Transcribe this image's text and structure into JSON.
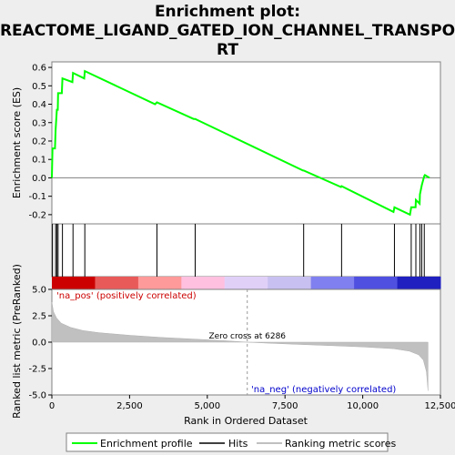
{
  "chart_data": {
    "type": "line",
    "title_lines": [
      "Enrichment plot:",
      "REACTOME_LIGAND_GATED_ION_CHANNEL_TRANSPO",
      "RT"
    ],
    "xlabel": "Rank in Ordered Dataset",
    "xlim": [
      0,
      12500
    ],
    "x_ticks": [
      0,
      2500,
      5000,
      7500,
      10000,
      12500
    ],
    "x_tick_labels": [
      "0",
      "2,500",
      "5,000",
      "7,500",
      "10,000",
      "12,500"
    ],
    "top_panel": {
      "ylabel": "Enrichment score (ES)",
      "ylim": [
        -0.25,
        0.63
      ],
      "y_ticks": [
        -0.2,
        -0.1,
        0.0,
        0.1,
        0.2,
        0.3,
        0.4,
        0.5,
        0.6
      ],
      "y_tick_labels": [
        "-0.2",
        "-0.1",
        "0.0",
        "0.1",
        "0.2",
        "0.3",
        "0.4",
        "0.5",
        "0.6"
      ],
      "series": [
        {
          "name": "Enrichment profile",
          "color": "#00ff00",
          "points": [
            [
              0,
              0.0
            ],
            [
              20,
              0.16
            ],
            [
              100,
              0.16
            ],
            [
              120,
              0.26
            ],
            [
              160,
              0.37
            ],
            [
              190,
              0.37
            ],
            [
              200,
              0.46
            ],
            [
              320,
              0.46
            ],
            [
              340,
              0.54
            ],
            [
              660,
              0.52
            ],
            [
              680,
              0.57
            ],
            [
              1040,
              0.54
            ],
            [
              1060,
              0.58
            ],
            [
              3320,
              0.4
            ],
            [
              3380,
              0.41
            ],
            [
              4560,
              0.32
            ],
            [
              4610,
              0.32
            ],
            [
              8080,
              0.04
            ],
            [
              8100,
              0.04
            ],
            [
              9300,
              -0.05
            ],
            [
              9320,
              -0.045
            ],
            [
              10990,
              -0.185
            ],
            [
              11020,
              -0.16
            ],
            [
              11520,
              -0.2
            ],
            [
              11560,
              -0.16
            ],
            [
              11700,
              -0.16
            ],
            [
              11710,
              -0.12
            ],
            [
              11830,
              -0.14
            ],
            [
              11840,
              -0.09
            ],
            [
              11900,
              -0.04
            ],
            [
              11980,
              0.01
            ],
            [
              12000,
              0.015
            ],
            [
              12150,
              0.0
            ]
          ]
        }
      ]
    },
    "hits": [
      20,
      120,
      160,
      200,
      340,
      680,
      1060,
      3380,
      4610,
      8100,
      9320,
      11020,
      11560,
      11710,
      11840,
      11900,
      11980
    ],
    "bottom_panel": {
      "ylabel": "Ranked list metric (PreRanked)",
      "ylim": [
        -5,
        5
      ],
      "y_ticks": [
        -5.0,
        -2.5,
        0.0,
        2.5,
        5.0
      ],
      "y_tick_labels": [
        "-5.0",
        "-2.5",
        "0.0",
        "2.5",
        "5.0"
      ],
      "series": [
        {
          "name": "Ranking metric scores",
          "color": "#c0c0c0",
          "points": [
            [
              0,
              3.8
            ],
            [
              50,
              2.9
            ],
            [
              150,
              2.3
            ],
            [
              300,
              1.8
            ],
            [
              600,
              1.4
            ],
            [
              1000,
              1.1
            ],
            [
              1500,
              0.9
            ],
            [
              2500,
              0.65
            ],
            [
              3500,
              0.45
            ],
            [
              4500,
              0.3
            ],
            [
              5500,
              0.15
            ],
            [
              6286,
              0.0
            ],
            [
              7000,
              -0.1
            ],
            [
              8000,
              -0.22
            ],
            [
              9000,
              -0.33
            ],
            [
              10000,
              -0.45
            ],
            [
              11000,
              -0.62
            ],
            [
              11500,
              -0.85
            ],
            [
              11800,
              -1.2
            ],
            [
              11950,
              -1.7
            ],
            [
              12050,
              -2.8
            ],
            [
              12100,
              -4.6
            ]
          ]
        }
      ]
    },
    "annotations": {
      "pos": "'na_pos' (positively correlated)",
      "neg": "'na_neg' (negatively correlated)",
      "zero_cross": "Zero cross at 6286",
      "zero_cross_value": 6286
    },
    "legend": {
      "placement": "bottom",
      "items": [
        {
          "label": "Enrichment profile",
          "color": "#00ff00"
        },
        {
          "label": "Hits",
          "color": "#000000"
        },
        {
          "label": "Ranking metric scores",
          "color": "#c0c0c0"
        }
      ]
    },
    "gradient_colors": [
      "#cc0000",
      "#e85a5a",
      "#ff9a9a",
      "#ffc0e0",
      "#e0d0f8",
      "#c8c0f0",
      "#8080f0",
      "#5050e0",
      "#2020c0"
    ]
  }
}
